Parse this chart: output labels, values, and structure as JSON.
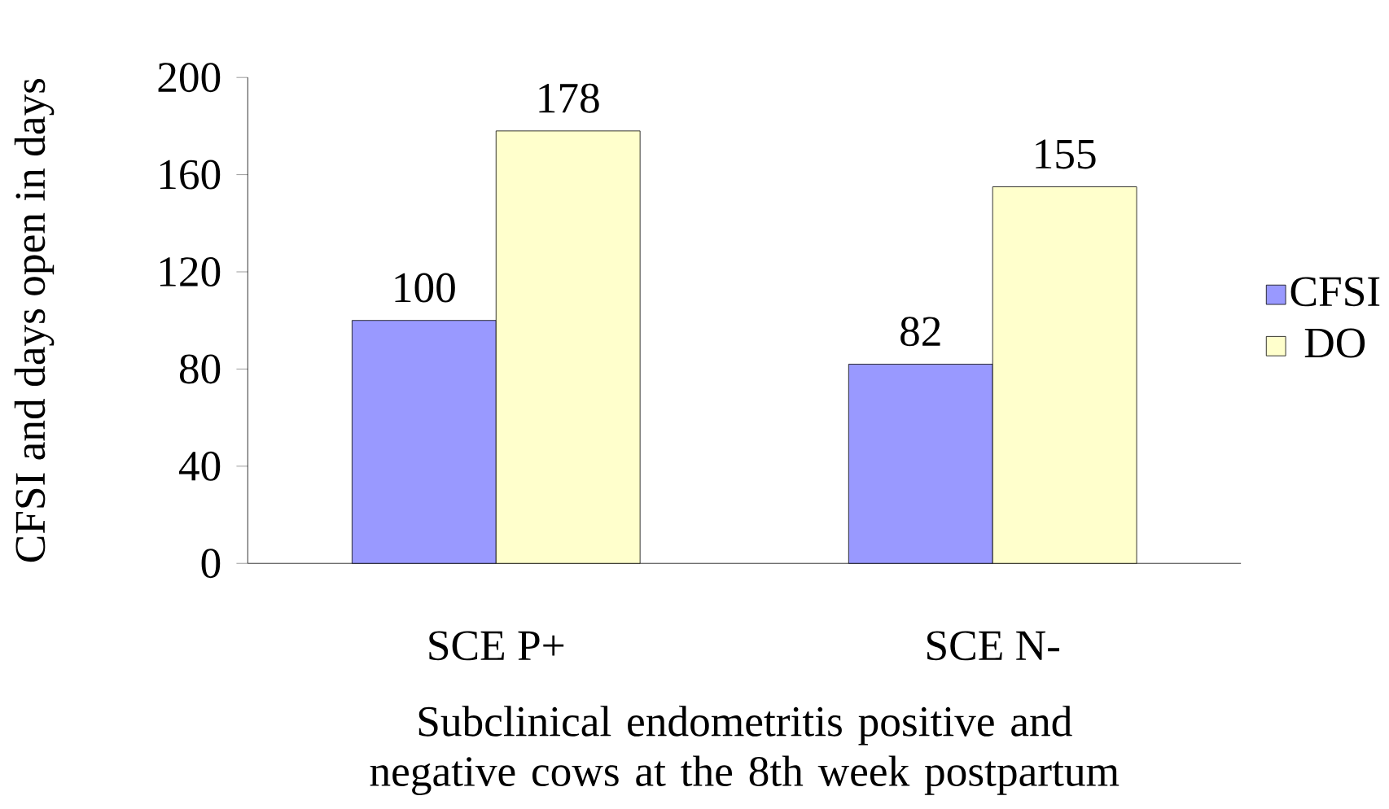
{
  "chart_data": {
    "type": "bar",
    "categories": [
      "SCE P+",
      "SCE N-"
    ],
    "series": [
      {
        "name": "CFSI",
        "color": "#9999ff",
        "values": [
          100,
          82
        ]
      },
      {
        "name": "DO",
        "color": "#ffffcc",
        "values": [
          178,
          155
        ]
      }
    ],
    "ylabel": "CFSI  and days open in days",
    "xlabel": "Subclinical endometritis positive and negative cows at the 8th week postpartum",
    "ylim": [
      0,
      200
    ],
    "yticks": [
      0,
      40,
      80,
      120,
      160,
      200
    ],
    "legend": "right",
    "data_labels": true
  }
}
